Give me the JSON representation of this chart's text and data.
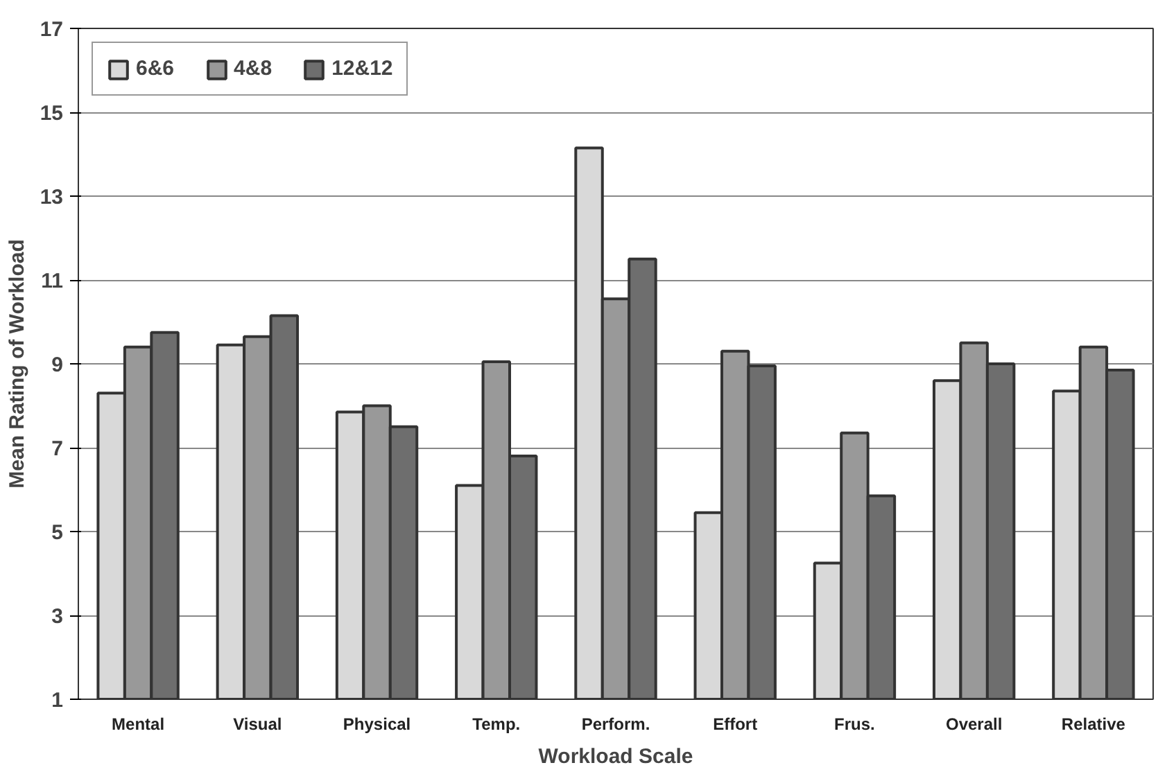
{
  "chart_data": {
    "type": "bar",
    "xlabel": "Workload Scale",
    "ylabel": "Mean Rating of Workload",
    "categories": [
      "Mental",
      "Visual",
      "Physical",
      "Temp.",
      "Perform.",
      "Effort",
      "Frus.",
      "Overall",
      "Relative"
    ],
    "series": [
      {
        "name": "6&6",
        "color": "#d9d9d9",
        "values": [
          8.3,
          9.45,
          7.85,
          6.1,
          14.15,
          5.45,
          4.25,
          8.6,
          8.35
        ]
      },
      {
        "name": "4&8",
        "color": "#999999",
        "values": [
          9.4,
          9.65,
          8.0,
          9.05,
          10.55,
          9.3,
          7.35,
          9.5,
          9.4
        ]
      },
      {
        "name": "12&12",
        "color": "#6e6e6e",
        "values": [
          9.75,
          10.15,
          7.5,
          6.8,
          11.5,
          8.95,
          5.85,
          9.0,
          8.85
        ]
      }
    ],
    "ylim": [
      1,
      17
    ],
    "yticks": [
      1,
      3,
      5,
      7,
      9,
      11,
      13,
      15,
      17
    ],
    "grid": "y",
    "legend": "top left"
  }
}
